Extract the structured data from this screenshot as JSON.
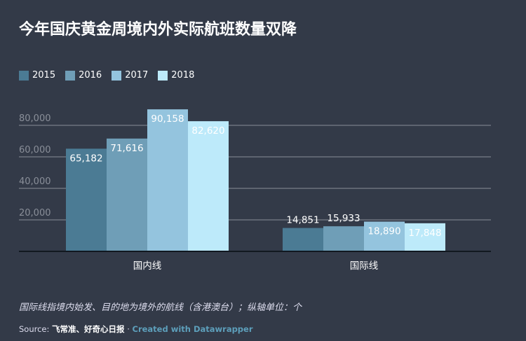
{
  "title": "今年国庆黄金周境内外实际航班数量双降",
  "note": "国际线指境内始发、目的地为境外的航线（含港澳台）；纵轴单位：个",
  "source": {
    "label": "Source:",
    "names": "飞常准、好奇心日报",
    "separator": "·",
    "credit": "Created with Datawrapper"
  },
  "chart_data": {
    "type": "bar",
    "categories": [
      "国内线",
      "国际线"
    ],
    "series": [
      {
        "name": "2015",
        "color": "#4b7b94",
        "values": [
          65182,
          14851
        ]
      },
      {
        "name": "2016",
        "color": "#6f9eb7",
        "values": [
          71616,
          15933
        ]
      },
      {
        "name": "2017",
        "color": "#94c4de",
        "values": [
          90158,
          18890
        ]
      },
      {
        "name": "2018",
        "color": "#bdeafa",
        "values": [
          82620,
          17848
        ]
      }
    ],
    "value_labels": [
      [
        "65,182",
        "14,851"
      ],
      [
        "71,616",
        "15,933"
      ],
      [
        "90,158",
        "18,890"
      ],
      [
        "82,620",
        "17,848"
      ]
    ],
    "yticks": [
      "20,000",
      "40,000",
      "60,000",
      "80,000"
    ],
    "ytick_values": [
      20000,
      40000,
      60000,
      80000
    ],
    "ylim": [
      0,
      100000
    ],
    "grid": true,
    "legend": "top-left"
  }
}
